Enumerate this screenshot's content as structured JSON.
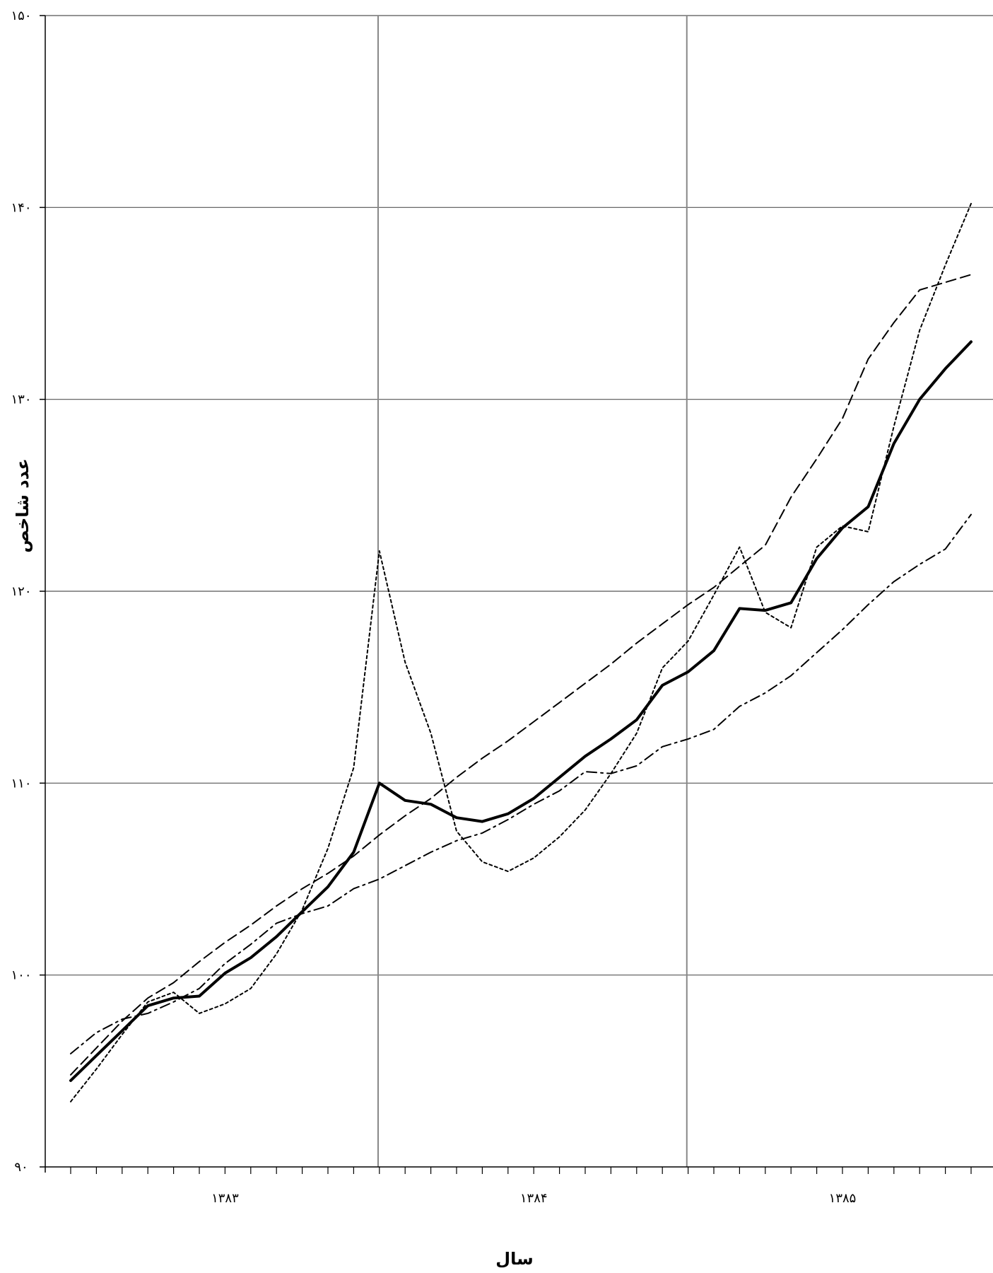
{
  "chart_data": {
    "type": "line",
    "xlabel": "سال",
    "ylabel": "عدد شاخص",
    "ylim": [
      90,
      150
    ],
    "y_ticks": [
      90,
      100,
      110,
      120,
      130,
      140,
      150
    ],
    "y_tick_labels": [
      "۹۰",
      "۱۰۰",
      "۱۱۰",
      "۱۲۰",
      "۱۳۰",
      "۱۴۰",
      "۱۵۰"
    ],
    "year_labels": [
      "۱۳۸۳",
      "۱۳۸۴",
      "۱۳۸۵"
    ],
    "months_per_point": 1,
    "grid": {
      "horizontal": true,
      "vertical_at_year_boundaries": true
    },
    "legend": "none",
    "series": [
      {
        "style": "solid-bold",
        "values": [
          94.5,
          95.8,
          97.1,
          98.4,
          98.8,
          98.9,
          100.1,
          100.9,
          102.0,
          103.3,
          104.6,
          106.4,
          110.0,
          109.1,
          108.9,
          108.2,
          108.0,
          108.4,
          109.2,
          110.3,
          111.4,
          112.3,
          113.3,
          115.1,
          115.8,
          116.9,
          119.1,
          119.0,
          119.4,
          121.7,
          123.3,
          124.4,
          127.7,
          130.0,
          131.6,
          133.0
        ]
      },
      {
        "style": "dotted",
        "values": [
          93.4,
          95.1,
          96.9,
          98.6,
          99.1,
          98.0,
          98.5,
          99.3,
          101.1,
          103.4,
          106.6,
          110.8,
          122.1,
          116.3,
          112.6,
          107.5,
          105.9,
          105.4,
          106.1,
          107.2,
          108.6,
          110.5,
          112.6,
          116.0,
          117.4,
          119.8,
          122.3,
          118.9,
          118.1,
          122.3,
          123.4,
          123.1,
          128.6,
          133.6,
          137.0,
          140.2
        ]
      },
      {
        "style": "dashed",
        "values": [
          94.8,
          96.2,
          97.6,
          98.8,
          99.6,
          100.7,
          101.7,
          102.6,
          103.6,
          104.5,
          105.3,
          106.2,
          107.3,
          108.3,
          109.2,
          110.3,
          111.3,
          112.2,
          113.2,
          114.2,
          115.2,
          116.2,
          117.3,
          118.3,
          119.3,
          120.2,
          121.3,
          122.4,
          124.9,
          126.9,
          129.0,
          132.1,
          134.0,
          135.7,
          136.1,
          136.5
        ]
      },
      {
        "style": "dash-dot",
        "values": [
          95.9,
          97.0,
          97.7,
          98.0,
          98.6,
          99.3,
          100.6,
          101.6,
          102.7,
          103.2,
          103.6,
          104.5,
          105.0,
          105.7,
          106.4,
          107.0,
          107.4,
          108.1,
          108.9,
          109.6,
          110.6,
          110.5,
          110.9,
          111.9,
          112.3,
          112.8,
          114.0,
          114.7,
          115.6,
          116.8,
          118.0,
          119.3,
          120.5,
          121.4,
          122.2,
          124.0
        ]
      }
    ]
  }
}
